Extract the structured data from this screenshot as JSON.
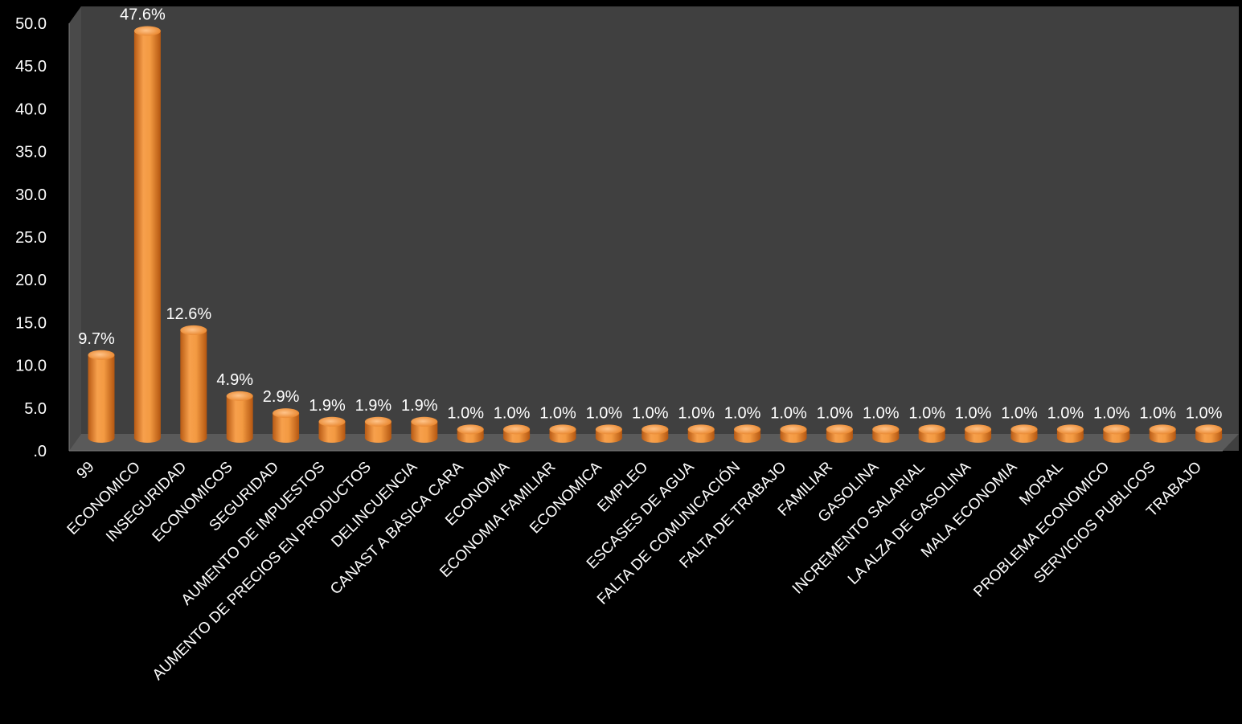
{
  "chart_data": {
    "type": "bar",
    "title": "",
    "xlabel": "",
    "ylabel": "",
    "ylim": [
      0,
      50
    ],
    "y_ticks": [
      ".0",
      "5.0",
      "10.0",
      "15.0",
      "20.0",
      "25.0",
      "30.0",
      "35.0",
      "40.0",
      "45.0",
      "50.0"
    ],
    "grid": false,
    "bar_color": "#f0913a",
    "background_color": "#404040",
    "categories": [
      "99",
      "ECONOMICO",
      "INSEGURIDAD",
      "ECONOMICOS",
      "SEGURIDAD",
      "AUMENTO DE IMPUESTOS",
      "AUMENTO DE PRECIOS EN PRODUCTOS",
      "DELINCUENCIA",
      "CANAST A BÀSICA CARA",
      "ECONOMIA",
      "ECONOMIA FAMILIAR",
      "ECONOMICA",
      "EMPLEO",
      "ESCASES DE AGUA",
      "FALTA DE COMUNICACIÓN",
      "FALTA DE TRABAJO",
      "FAMILIAR",
      "GASOLINA",
      "INCREMENTO SALARIAL",
      "LA ALZA DE GASOLINA",
      "MALA ECONOMIA",
      "MORAL",
      "PROBLEMA ECONOMICO",
      "SERVICIOS PUBLICOS",
      "TRABAJO"
    ],
    "values": [
      9.7,
      47.6,
      12.6,
      4.9,
      2.9,
      1.9,
      1.9,
      1.9,
      1.0,
      1.0,
      1.0,
      1.0,
      1.0,
      1.0,
      1.0,
      1.0,
      1.0,
      1.0,
      1.0,
      1.0,
      1.0,
      1.0,
      1.0,
      1.0,
      1.0
    ],
    "data_labels": [
      "9.7%",
      "47.6%",
      "12.6%",
      "4.9%",
      "2.9%",
      "1.9%",
      "1.9%",
      "1.9%",
      "1.0%",
      "1.0%",
      "1.0%",
      "1.0%",
      "1.0%",
      "1.0%",
      "1.0%",
      "1.0%",
      "1.0%",
      "1.0%",
      "1.0%",
      "1.0%",
      "1.0%",
      "1.0%",
      "1.0%",
      "1.0%",
      "1.0%"
    ]
  }
}
